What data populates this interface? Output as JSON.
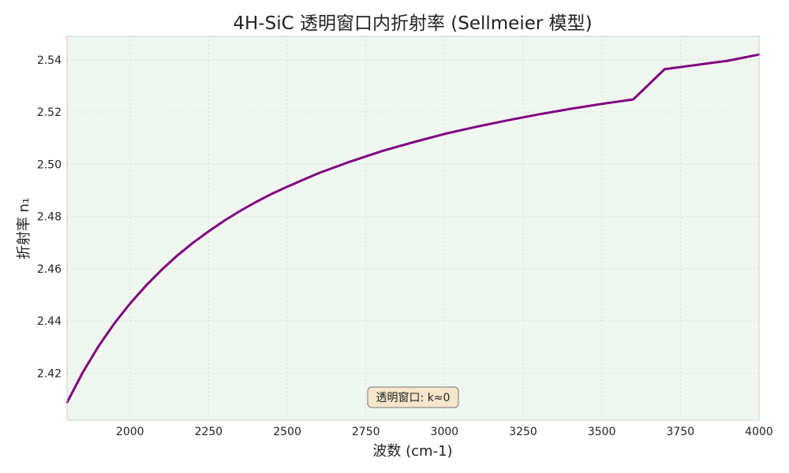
{
  "chart_data": {
    "type": "line",
    "title": "4H-SiC 透明窗口内折射率 (Sellmeier 模型)",
    "xlabel": "波数 (cm-1)",
    "ylabel": "折射率 n₁",
    "xlim": [
      1800,
      4000
    ],
    "ylim": [
      2.402,
      2.549
    ],
    "grid": true,
    "xticks": [
      2000,
      2250,
      2500,
      2750,
      3000,
      3250,
      3500,
      3750,
      4000
    ],
    "yticks": [
      2.42,
      2.44,
      2.46,
      2.48,
      2.5,
      2.52,
      2.54
    ],
    "ytick_labels": [
      "2.42",
      "2.44",
      "2.46",
      "2.48",
      "2.50",
      "2.52",
      "2.54"
    ],
    "series": [
      {
        "color": "#800080",
        "x": [
          1800,
          1850,
          1900,
          1950,
          2000,
          2050,
          2100,
          2150,
          2200,
          2250,
          2300,
          2350,
          2400,
          2450,
          2500,
          2600,
          2700,
          2800,
          2900,
          3000,
          3100,
          3200,
          3300,
          3400,
          3500,
          3600,
          3700,
          3800,
          3900,
          4000
        ],
        "y": [
          2.4088,
          2.4203,
          2.4303,
          2.439,
          2.4466,
          2.4534,
          2.4595,
          2.465,
          2.4699,
          2.4743,
          2.4784,
          2.4821,
          2.4855,
          2.4886,
          2.4914,
          2.4966,
          2.501,
          2.505,
          2.5084,
          2.5116,
          2.5143,
          2.5168,
          2.5191,
          2.5212,
          2.5231,
          2.5248,
          2.5364,
          2.538,
          2.5396,
          2.542
        ]
      }
    ],
    "annotation": "透明窗口: k≈0",
    "colors": {
      "plot_bg": "#f0f7f0",
      "line": "#800080",
      "annotation_bg": "#f5e6cc",
      "grid": "#cfd8cf"
    }
  }
}
